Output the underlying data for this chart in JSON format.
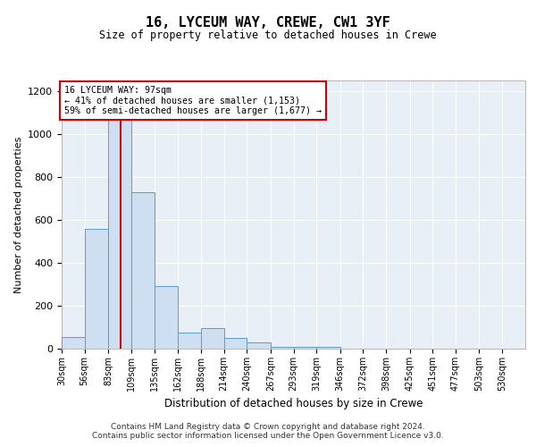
{
  "title": "16, LYCEUM WAY, CREWE, CW1 3YF",
  "subtitle": "Size of property relative to detached houses in Crewe",
  "xlabel": "Distribution of detached houses by size in Crewe",
  "ylabel": "Number of detached properties",
  "bar_edges": [
    30,
    56,
    83,
    109,
    135,
    162,
    188,
    214,
    240,
    267,
    293,
    319,
    346,
    372,
    398,
    425,
    451,
    477,
    503,
    530,
    556
  ],
  "bar_heights": [
    55,
    560,
    1080,
    730,
    290,
    75,
    95,
    50,
    30,
    10,
    10,
    10,
    0,
    0,
    0,
    0,
    0,
    0,
    0,
    0
  ],
  "bar_color": "#cddff0",
  "bar_edge_color": "#5b9bd5",
  "property_size": 97,
  "annotation_line1": "16 LYCEUM WAY: 97sqm",
  "annotation_line2": "← 41% of detached houses are smaller (1,153)",
  "annotation_line3": "59% of semi-detached houses are larger (1,677) →",
  "red_line_color": "#cc0000",
  "annotation_box_facecolor": "#ffffff",
  "annotation_box_edgecolor": "#cc0000",
  "ylim": [
    0,
    1250
  ],
  "yticks": [
    0,
    200,
    400,
    600,
    800,
    1000,
    1200
  ],
  "background_color": "#e8eff7",
  "grid_color": "#ffffff",
  "footer_line1": "Contains HM Land Registry data © Crown copyright and database right 2024.",
  "footer_line2": "Contains public sector information licensed under the Open Government Licence v3.0."
}
